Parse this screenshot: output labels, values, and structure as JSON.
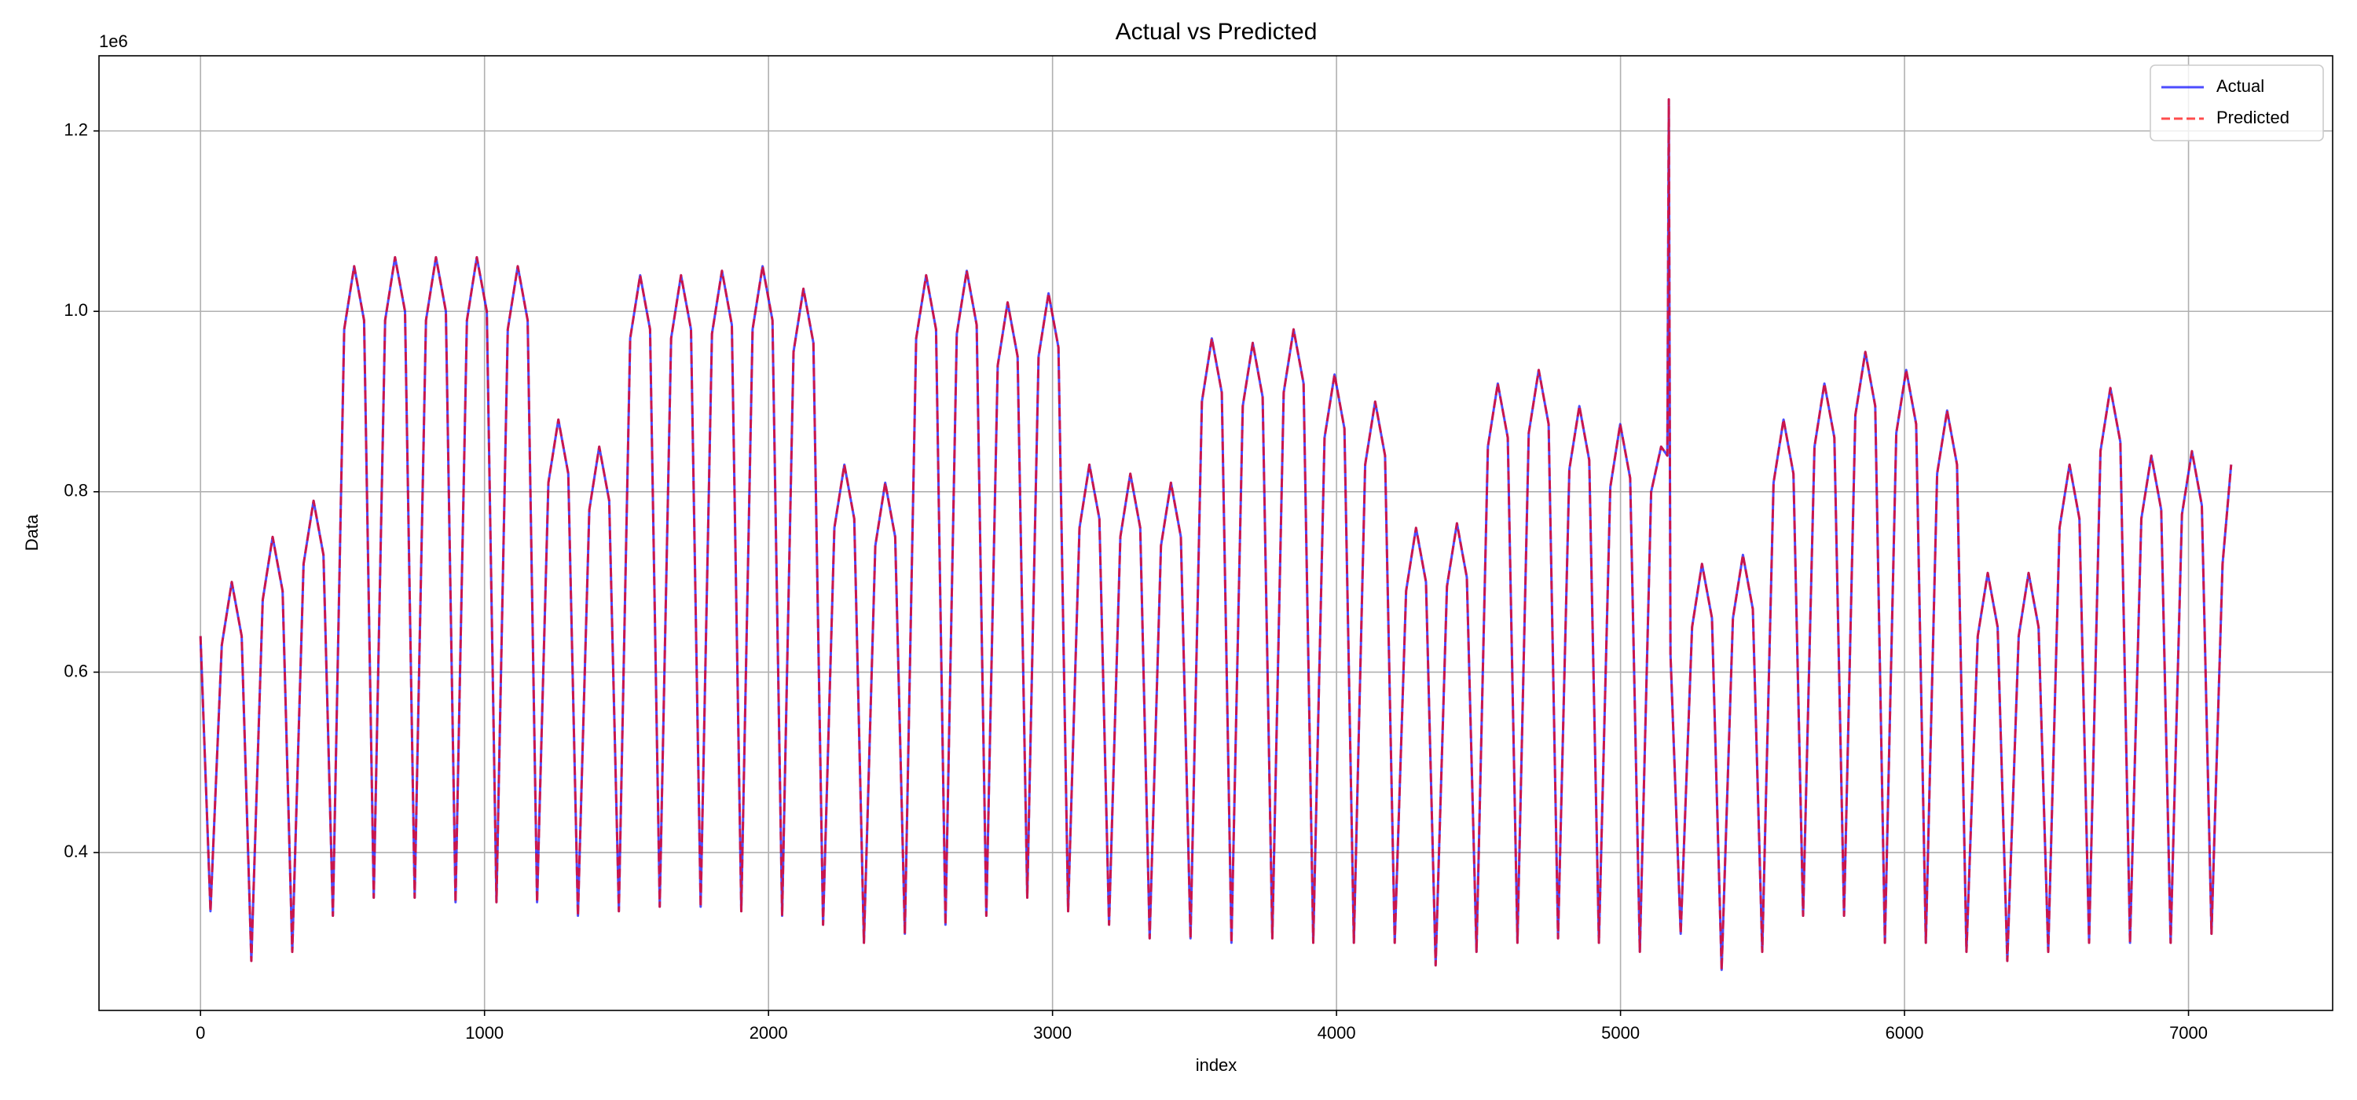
{
  "chart_data": {
    "type": "line",
    "title": "Actual vs Predicted",
    "xlabel": "index",
    "ylabel": "Data",
    "y_offset_label": "1e6",
    "xlim": [
      -357.5,
      7507.5
    ],
    "ylim": [
      0.225,
      1.2833
    ],
    "xticks": [
      0,
      1000,
      2000,
      3000,
      4000,
      5000,
      6000,
      7000
    ],
    "yticks": [
      0.4,
      0.6,
      0.8,
      {
        "value": 1,
        "label": "1.0"
      },
      1.2
    ],
    "grid": true,
    "legend": "upper-right",
    "alpha": 0.7,
    "x": [
      0,
      35,
      75,
      110,
      145,
      179,
      219,
      254,
      289,
      323,
      363,
      398,
      433,
      466,
      506,
      541,
      576,
      610,
      650,
      685,
      720,
      754,
      794,
      829,
      864,
      898,
      938,
      973,
      1008,
      1042,
      1082,
      1117,
      1152,
      1185,
      1225,
      1260,
      1295,
      1329,
      1369,
      1404,
      1439,
      1473,
      1513,
      1548,
      1583,
      1617,
      1657,
      1692,
      1727,
      1761,
      1801,
      1836,
      1871,
      1904,
      1944,
      1979,
      2014,
      2048,
      2088,
      2123,
      2158,
      2192,
      2232,
      2267,
      2302,
      2336,
      2376,
      2411,
      2446,
      2480,
      2520,
      2555,
      2590,
      2623,
      2663,
      2698,
      2733,
      2767,
      2807,
      2842,
      2877,
      2911,
      2951,
      2986,
      3021,
      3055,
      3095,
      3130,
      3165,
      3199,
      3239,
      3274,
      3309,
      3342,
      3382,
      3417,
      3452,
      3486,
      3526,
      3561,
      3596,
      3630,
      3670,
      3705,
      3740,
      3774,
      3814,
      3849,
      3884,
      3918,
      3958,
      3993,
      4028,
      4061,
      4101,
      4136,
      4171,
      4205,
      4245,
      4280,
      4315,
      4349,
      4389,
      4424,
      4459,
      4493,
      4533,
      4568,
      4603,
      4637,
      4677,
      4712,
      4747,
      4780,
      4820,
      4855,
      4890,
      4924,
      4964,
      4999,
      5034,
      5068,
      5108,
      5143,
      5165,
      5170,
      5176,
      5212,
      5252,
      5287,
      5322,
      5356,
      5396,
      5431,
      5466,
      5499,
      5539,
      5574,
      5609,
      5643,
      5683,
      5718,
      5753,
      5787,
      5827,
      5862,
      5897,
      5931,
      5971,
      6006,
      6041,
      6075,
      6115,
      6150,
      6185,
      6218,
      6258,
      6293,
      6328,
      6362,
      6402,
      6437,
      6472,
      6506,
      6546,
      6581,
      6616,
      6650,
      6690,
      6725,
      6760,
      6794,
      6834,
      6869,
      6904,
      6937,
      6977,
      7012,
      7047,
      7081,
      7120,
      7150
    ],
    "series": [
      {
        "name": "Actual",
        "color": "#0000ff",
        "line_style": "solid",
        "values": [
          0.64,
          0.335,
          0.63,
          0.7,
          0.64,
          0.28,
          0.68,
          0.75,
          0.69,
          0.29,
          0.72,
          0.79,
          0.73,
          0.33,
          0.98,
          1.05,
          0.99,
          0.35,
          0.99,
          1.06,
          1.0,
          0.35,
          0.99,
          1.06,
          1.0,
          0.345,
          0.99,
          1.06,
          1.0,
          0.345,
          0.98,
          1.05,
          0.99,
          0.345,
          0.81,
          0.88,
          0.82,
          0.33,
          0.78,
          0.85,
          0.79,
          0.335,
          0.97,
          1.04,
          0.98,
          0.34,
          0.97,
          1.04,
          0.98,
          0.34,
          0.975,
          1.045,
          0.985,
          0.335,
          0.98,
          1.05,
          0.99,
          0.33,
          0.955,
          1.025,
          0.965,
          0.32,
          0.76,
          0.83,
          0.77,
          0.3,
          0.74,
          0.81,
          0.75,
          0.31,
          0.97,
          1.04,
          0.98,
          0.32,
          0.975,
          1.045,
          0.985,
          0.33,
          0.94,
          1.01,
          0.95,
          0.35,
          0.95,
          1.02,
          0.96,
          0.335,
          0.76,
          0.83,
          0.77,
          0.32,
          0.75,
          0.82,
          0.76,
          0.305,
          0.74,
          0.81,
          0.75,
          0.305,
          0.9,
          0.97,
          0.91,
          0.3,
          0.895,
          0.965,
          0.905,
          0.305,
          0.91,
          0.98,
          0.92,
          0.3,
          0.86,
          0.93,
          0.87,
          0.3,
          0.83,
          0.9,
          0.84,
          0.3,
          0.69,
          0.76,
          0.7,
          0.275,
          0.695,
          0.765,
          0.705,
          0.29,
          0.85,
          0.92,
          0.86,
          0.3,
          0.865,
          0.935,
          0.875,
          0.305,
          0.825,
          0.895,
          0.835,
          0.3,
          0.805,
          0.875,
          0.815,
          0.29,
          0.8,
          0.85,
          0.84,
          1.235,
          0.62,
          0.31,
          0.65,
          0.72,
          0.66,
          0.27,
          0.66,
          0.73,
          0.67,
          0.29,
          0.81,
          0.88,
          0.82,
          0.33,
          0.85,
          0.92,
          0.86,
          0.33,
          0.885,
          0.955,
          0.895,
          0.3,
          0.865,
          0.935,
          0.875,
          0.3,
          0.82,
          0.89,
          0.83,
          0.29,
          0.64,
          0.71,
          0.65,
          0.28,
          0.64,
          0.71,
          0.65,
          0.29,
          0.76,
          0.83,
          0.77,
          0.3,
          0.845,
          0.915,
          0.855,
          0.3,
          0.77,
          0.84,
          0.78,
          0.3,
          0.775,
          0.845,
          0.785,
          0.31,
          0.72,
          0.83
        ]
      },
      {
        "name": "Predicted",
        "color": "#ff0000",
        "line_style": "dashed",
        "values": [
          0.64,
          0.335,
          0.63,
          0.7,
          0.64,
          0.28,
          0.68,
          0.75,
          0.69,
          0.29,
          0.72,
          0.79,
          0.73,
          0.33,
          0.98,
          1.05,
          0.99,
          0.35,
          0.99,
          1.06,
          1.0,
          0.35,
          0.99,
          1.06,
          1.0,
          0.345,
          0.99,
          1.06,
          1.0,
          0.345,
          0.98,
          1.05,
          0.99,
          0.345,
          0.81,
          0.88,
          0.82,
          0.33,
          0.78,
          0.85,
          0.79,
          0.335,
          0.97,
          1.04,
          0.98,
          0.34,
          0.97,
          1.04,
          0.98,
          0.34,
          0.975,
          1.045,
          0.985,
          0.335,
          0.98,
          1.05,
          0.99,
          0.33,
          0.955,
          1.025,
          0.965,
          0.32,
          0.76,
          0.83,
          0.77,
          0.3,
          0.74,
          0.81,
          0.75,
          0.31,
          0.97,
          1.04,
          0.98,
          0.32,
          0.975,
          1.045,
          0.985,
          0.33,
          0.94,
          1.01,
          0.95,
          0.35,
          0.95,
          1.02,
          0.96,
          0.335,
          0.76,
          0.83,
          0.77,
          0.32,
          0.75,
          0.82,
          0.76,
          0.305,
          0.74,
          0.81,
          0.75,
          0.305,
          0.9,
          0.97,
          0.91,
          0.3,
          0.895,
          0.965,
          0.905,
          0.305,
          0.91,
          0.98,
          0.92,
          0.3,
          0.86,
          0.93,
          0.87,
          0.3,
          0.83,
          0.9,
          0.84,
          0.3,
          0.69,
          0.76,
          0.7,
          0.275,
          0.695,
          0.765,
          0.705,
          0.29,
          0.85,
          0.92,
          0.86,
          0.3,
          0.865,
          0.935,
          0.875,
          0.305,
          0.825,
          0.895,
          0.835,
          0.3,
          0.805,
          0.875,
          0.815,
          0.29,
          0.8,
          0.85,
          0.84,
          1.235,
          0.62,
          0.31,
          0.65,
          0.72,
          0.66,
          0.27,
          0.66,
          0.73,
          0.67,
          0.29,
          0.81,
          0.88,
          0.82,
          0.33,
          0.85,
          0.92,
          0.86,
          0.33,
          0.885,
          0.955,
          0.895,
          0.3,
          0.865,
          0.935,
          0.875,
          0.3,
          0.82,
          0.89,
          0.83,
          0.29,
          0.64,
          0.71,
          0.65,
          0.28,
          0.64,
          0.71,
          0.65,
          0.29,
          0.76,
          0.83,
          0.77,
          0.3,
          0.845,
          0.915,
          0.855,
          0.3,
          0.77,
          0.84,
          0.78,
          0.3,
          0.775,
          0.845,
          0.785,
          0.31,
          0.72,
          0.83
        ]
      }
    ]
  }
}
